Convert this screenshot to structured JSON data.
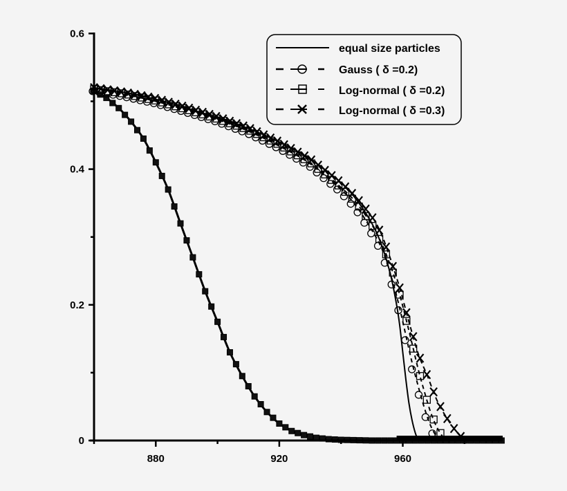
{
  "chart_data": {
    "type": "line",
    "title": "",
    "xlabel": "",
    "ylabel": "",
    "xlim": [
      860,
      992
    ],
    "ylim": [
      0,
      0.6
    ],
    "grid": false,
    "legend_position": "upper right (inside)",
    "x_ticks": [
      880,
      920,
      960
    ],
    "x_tick_labels": [
      "880",
      "920",
      "960"
    ],
    "x_minor_ticks": [
      860,
      900,
      940,
      980
    ],
    "y_ticks": [
      0,
      0.2,
      0.4,
      0.6
    ],
    "y_tick_labels": [
      "0",
      "0.2",
      "0.4",
      "0.6"
    ],
    "y_minor_ticks": [
      0.1,
      0.3,
      0.5
    ],
    "legend": [
      {
        "label": "equal size particles",
        "style": "solid",
        "marker": "none"
      },
      {
        "label": "Gauss ( δ =0.2)",
        "style": "dashed",
        "marker": "circle"
      },
      {
        "label": "Log-normal ( δ =0.2)",
        "style": "dashed",
        "marker": "square"
      },
      {
        "label": "Log-normal ( δ =0.3)",
        "style": "dashed",
        "marker": "x"
      }
    ],
    "series_groups": [
      {
        "name": "fast-decay branch (all four series overlap)",
        "x": [
          860,
          864,
          868,
          872,
          876,
          880,
          884,
          888,
          892,
          896,
          900,
          904,
          908,
          912,
          916,
          920,
          924,
          928,
          932,
          936,
          940,
          950,
          960,
          970,
          980,
          992
        ],
        "y": [
          0.515,
          0.505,
          0.49,
          0.47,
          0.445,
          0.41,
          0.37,
          0.32,
          0.27,
          0.22,
          0.175,
          0.13,
          0.095,
          0.065,
          0.042,
          0.025,
          0.014,
          0.008,
          0.004,
          0.002,
          0.001,
          0.0,
          0.0,
          0.0,
          0.0,
          0.0
        ]
      },
      {
        "name": "slow-decay branch",
        "series": [
          {
            "name": "equal size particles",
            "x": [
              860,
              870,
              880,
              890,
              900,
              910,
              920,
              930,
              940,
              945,
              950,
              953,
              956,
              958,
              959,
              960,
              961,
              962,
              963,
              964,
              965
            ],
            "y": [
              0.52,
              0.513,
              0.503,
              0.49,
              0.476,
              0.46,
              0.44,
              0.415,
              0.38,
              0.355,
              0.32,
              0.29,
              0.245,
              0.2,
              0.17,
              0.13,
              0.09,
              0.055,
              0.03,
              0.012,
              0.0
            ]
          },
          {
            "name": "Gauss ( δ =0.2)",
            "x": [
              860,
              870,
              880,
              890,
              900,
              910,
              920,
              930,
              940,
              945,
              950,
              953,
              955,
              957,
              959,
              961,
              963,
              965,
              967,
              969,
              971
            ],
            "y": [
              0.518,
              0.51,
              0.5,
              0.487,
              0.473,
              0.456,
              0.434,
              0.408,
              0.37,
              0.345,
              0.31,
              0.285,
              0.26,
              0.23,
              0.195,
              0.155,
              0.115,
              0.08,
              0.048,
              0.022,
              0.005
            ]
          },
          {
            "name": "Log-normal ( δ =0.2)",
            "x": [
              860,
              870,
              880,
              890,
              900,
              910,
              920,
              930,
              940,
              945,
              950,
              953,
              955,
              957,
              959,
              961,
              963,
              965,
              967,
              969,
              971,
              973
            ],
            "y": [
              0.518,
              0.511,
              0.501,
              0.488,
              0.474,
              0.458,
              0.436,
              0.41,
              0.373,
              0.35,
              0.318,
              0.292,
              0.27,
              0.245,
              0.215,
              0.18,
              0.143,
              0.105,
              0.072,
              0.042,
              0.02,
              0.005
            ]
          },
          {
            "name": "Log-normal ( δ =0.3)",
            "x": [
              860,
              870,
              880,
              890,
              900,
              910,
              920,
              930,
              940,
              945,
              950,
              953,
              956,
              959,
              962,
              965,
              968,
              971,
              974,
              977,
              979
            ],
            "y": [
              0.52,
              0.513,
              0.504,
              0.491,
              0.477,
              0.461,
              0.44,
              0.415,
              0.38,
              0.358,
              0.33,
              0.305,
              0.268,
              0.225,
              0.175,
              0.128,
              0.095,
              0.06,
              0.035,
              0.015,
              0.005
            ]
          }
        ]
      }
    ]
  }
}
